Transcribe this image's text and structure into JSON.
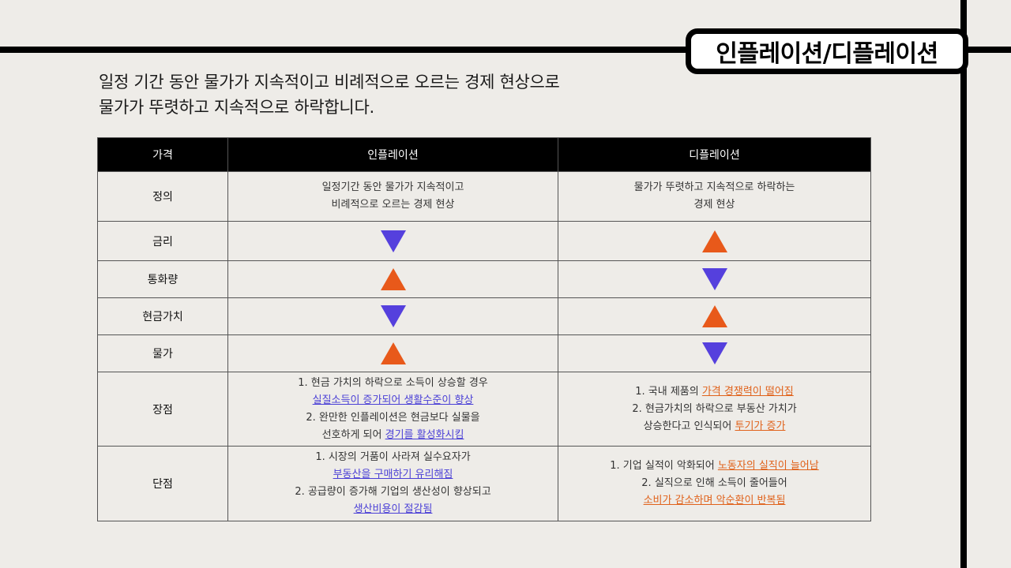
{
  "title": "인플레이션/디플레이션",
  "intro": {
    "line1": "일정 기간 동안 물가가 지속적이고 비례적으로 오르는 경제 현상으로",
    "line2": "물가가 뚜렷하고 지속적으로 하락합니다."
  },
  "colors": {
    "down_arrow": "#5540dd",
    "up_arrow": "#e8591a",
    "highlight_inflation": "#4a3fd6",
    "highlight_deflation": "#e0621b"
  },
  "table": {
    "headers": {
      "col0": "가격",
      "col1": "인플레이션",
      "col2": "디플레이션"
    },
    "definition": {
      "label": "정의",
      "inflation": {
        "l1": "일정기간 동안 물가가 지속적이고",
        "l2": "비례적으로 오르는 경제 현상"
      },
      "deflation": {
        "l1": "물가가 뚜렷하고 지속적으로 하락하는",
        "l2": "경제 현상"
      }
    },
    "rows": [
      {
        "label": "금리",
        "inflation": "down",
        "deflation": "up"
      },
      {
        "label": "통화량",
        "inflation": "up",
        "deflation": "down"
      },
      {
        "label": "현금가치",
        "inflation": "down",
        "deflation": "up"
      },
      {
        "label": "물가",
        "inflation": "up",
        "deflation": "down"
      }
    ],
    "pros": {
      "label": "장점",
      "inflation": {
        "l1": "1. 현금 가치의 하락으로 소득이 상승할 경우",
        "l2_link": "실질소득이 증가되어 생활수준이 향상",
        "l3": "2. 완만한 인플레이션은 현금보다 실물을",
        "l4_pre": "선호하게 되어 ",
        "l4_link": "경기를 활성화시킴"
      },
      "deflation": {
        "l1_pre": "1. 국내 제품의 ",
        "l1_link": "가격 경쟁력이 떨어짐",
        "l2": "2. 현금가치의 하락으로 부동산 가치가",
        "l3_pre": "상승한다고 인식되어 ",
        "l3_link": "투기가 증가"
      }
    },
    "cons": {
      "label": "단점",
      "inflation": {
        "l1": "1. 시장의 거품이 사라져 실수요자가",
        "l2_link": "부동산을 구매하기 유리해짐",
        "l3": "2. 공급량이 증가해 기업의 생산성이 향상되고",
        "l4_link": "생산비용이 절감됨"
      },
      "deflation": {
        "l1_pre": "1. 기업 실적이 악화되어 ",
        "l1_link": "노동자의 실직이 늘어남",
        "l2": "2. 실직으로 인해 소득이 줄어들어",
        "l3_link": "소비가 감소하며 악순환이 반복됨"
      }
    }
  }
}
